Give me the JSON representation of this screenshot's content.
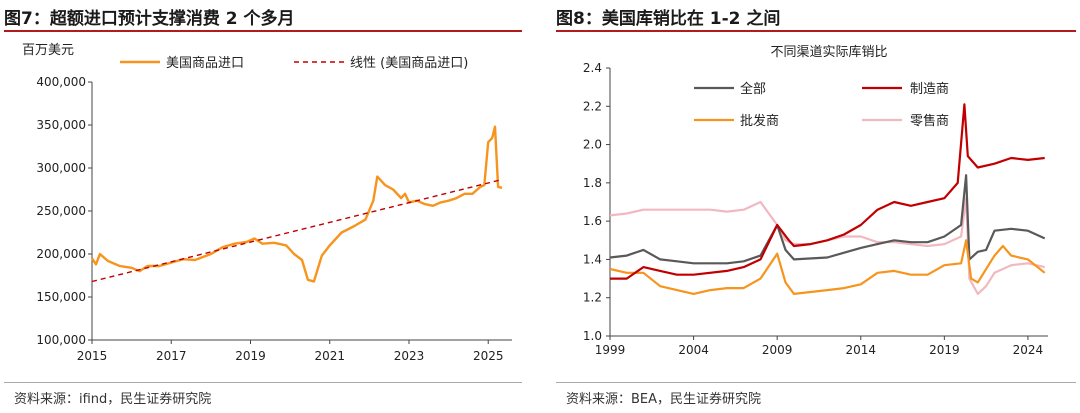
{
  "figures": [
    {
      "title": "图7：超额进口预计支撑消费 2 个多月",
      "source": "资料来源：ifind，民生证券研究院"
    },
    {
      "title": "图8：美国库销比在 1-2 之间",
      "source": "资料来源：BEA，民生证券研究院"
    }
  ],
  "colors": {
    "accent_rule": "#b11b1b",
    "orange": "#f7941d",
    "darkred": "#c00000",
    "gray": "#595959",
    "pink": "#f2b8c0"
  },
  "chart_data": [
    {
      "type": "line",
      "title": "",
      "unit_label": "百万美元",
      "xlabel": "",
      "ylabel": "",
      "xlim": [
        2015,
        2025.6
      ],
      "ylim": [
        100000,
        400000
      ],
      "x_ticks": [
        "2015",
        "2017",
        "2019",
        "2021",
        "2023",
        "2025"
      ],
      "y_ticks": [
        "100,000",
        "150,000",
        "200,000",
        "250,000",
        "300,000",
        "350,000",
        "400,000"
      ],
      "legend_position": "top",
      "series": [
        {
          "name": "美国商品进口",
          "style": "solid",
          "color": "#f7941d",
          "points": [
            [
              2015.0,
              195000
            ],
            [
              2015.1,
              188000
            ],
            [
              2015.2,
              200000
            ],
            [
              2015.4,
              192000
            ],
            [
              2015.7,
              186000
            ],
            [
              2016.0,
              184000
            ],
            [
              2016.2,
              180000
            ],
            [
              2016.4,
              186000
            ],
            [
              2016.7,
              186000
            ],
            [
              2017.0,
              190000
            ],
            [
              2017.3,
              194000
            ],
            [
              2017.6,
              193000
            ],
            [
              2018.0,
              200000
            ],
            [
              2018.3,
              208000
            ],
            [
              2018.6,
              212000
            ],
            [
              2018.9,
              214000
            ],
            [
              2019.1,
              218000
            ],
            [
              2019.3,
              212000
            ],
            [
              2019.6,
              213000
            ],
            [
              2019.9,
              210000
            ],
            [
              2020.1,
              200000
            ],
            [
              2020.3,
              193000
            ],
            [
              2020.45,
              170000
            ],
            [
              2020.6,
              168000
            ],
            [
              2020.8,
              198000
            ],
            [
              2021.0,
              210000
            ],
            [
              2021.3,
              225000
            ],
            [
              2021.6,
              232000
            ],
            [
              2021.9,
              240000
            ],
            [
              2022.1,
              262000
            ],
            [
              2022.2,
              290000
            ],
            [
              2022.4,
              280000
            ],
            [
              2022.6,
              275000
            ],
            [
              2022.8,
              265000
            ],
            [
              2022.9,
              270000
            ],
            [
              2023.0,
              260000
            ],
            [
              2023.2,
              262000
            ],
            [
              2023.4,
              258000
            ],
            [
              2023.6,
              256000
            ],
            [
              2023.8,
              260000
            ],
            [
              2024.0,
              262000
            ],
            [
              2024.2,
              265000
            ],
            [
              2024.4,
              270000
            ],
            [
              2024.6,
              270000
            ],
            [
              2024.8,
              278000
            ],
            [
              2024.9,
              280000
            ],
            [
              2025.0,
              330000
            ],
            [
              2025.1,
              335000
            ],
            [
              2025.17,
              348000
            ],
            [
              2025.25,
              278000
            ],
            [
              2025.35,
              277000
            ]
          ]
        },
        {
          "name": "线性 (美国商品进口)",
          "style": "dashed",
          "color": "#c00000",
          "points": [
            [
              2015.0,
              168000
            ],
            [
              2025.3,
              286000
            ]
          ]
        }
      ]
    },
    {
      "type": "line",
      "title": "不同渠道实际库销比",
      "xlabel": "",
      "ylabel": "",
      "xlim": [
        1999,
        2025.2
      ],
      "ylim": [
        1.0,
        2.4
      ],
      "x_ticks": [
        "1999",
        "2004",
        "2009",
        "2014",
        "2019",
        "2024"
      ],
      "y_ticks": [
        "1.0",
        "1.2",
        "1.4",
        "1.6",
        "1.8",
        "2.0",
        "2.2",
        "2.4"
      ],
      "legend_position": "top",
      "series": [
        {
          "name": "全部",
          "color": "#595959",
          "points": [
            [
              1999,
              1.41
            ],
            [
              2000,
              1.42
            ],
            [
              2001,
              1.45
            ],
            [
              2002,
              1.4
            ],
            [
              2003,
              1.39
            ],
            [
              2004,
              1.38
            ],
            [
              2005,
              1.38
            ],
            [
              2006,
              1.38
            ],
            [
              2007,
              1.39
            ],
            [
              2008,
              1.42
            ],
            [
              2009,
              1.58
            ],
            [
              2009.5,
              1.45
            ],
            [
              2010,
              1.4
            ],
            [
              2012,
              1.41
            ],
            [
              2014,
              1.46
            ],
            [
              2015,
              1.48
            ],
            [
              2016,
              1.5
            ],
            [
              2017,
              1.49
            ],
            [
              2018,
              1.49
            ],
            [
              2019,
              1.52
            ],
            [
              2020,
              1.58
            ],
            [
              2020.3,
              1.84
            ],
            [
              2020.5,
              1.4
            ],
            [
              2021,
              1.44
            ],
            [
              2021.5,
              1.45
            ],
            [
              2022,
              1.55
            ],
            [
              2023,
              1.56
            ],
            [
              2024,
              1.55
            ],
            [
              2025,
              1.51
            ]
          ]
        },
        {
          "name": "制造商",
          "color": "#c00000",
          "points": [
            [
              1999,
              1.3
            ],
            [
              2000,
              1.3
            ],
            [
              2001,
              1.36
            ],
            [
              2002,
              1.34
            ],
            [
              2003,
              1.32
            ],
            [
              2004,
              1.32
            ],
            [
              2006,
              1.34
            ],
            [
              2007,
              1.36
            ],
            [
              2008,
              1.4
            ],
            [
              2009,
              1.58
            ],
            [
              2009.7,
              1.5
            ],
            [
              2010,
              1.47
            ],
            [
              2011,
              1.48
            ],
            [
              2012,
              1.5
            ],
            [
              2013,
              1.53
            ],
            [
              2014,
              1.58
            ],
            [
              2015,
              1.66
            ],
            [
              2016,
              1.7
            ],
            [
              2017,
              1.68
            ],
            [
              2018,
              1.7
            ],
            [
              2019,
              1.72
            ],
            [
              2019.8,
              1.8
            ],
            [
              2020.2,
              2.21
            ],
            [
              2020.4,
              1.94
            ],
            [
              2021,
              1.88
            ],
            [
              2022,
              1.9
            ],
            [
              2023,
              1.93
            ],
            [
              2024,
              1.92
            ],
            [
              2025,
              1.93
            ]
          ]
        },
        {
          "name": "批发商",
          "color": "#f7941d",
          "points": [
            [
              1999,
              1.35
            ],
            [
              2000,
              1.33
            ],
            [
              2001,
              1.33
            ],
            [
              2002,
              1.26
            ],
            [
              2003,
              1.24
            ],
            [
              2004,
              1.22
            ],
            [
              2005,
              1.24
            ],
            [
              2006,
              1.25
            ],
            [
              2007,
              1.25
            ],
            [
              2008,
              1.3
            ],
            [
              2009,
              1.43
            ],
            [
              2009.5,
              1.28
            ],
            [
              2010,
              1.22
            ],
            [
              2011,
              1.23
            ],
            [
              2012,
              1.24
            ],
            [
              2013,
              1.25
            ],
            [
              2014,
              1.27
            ],
            [
              2015,
              1.33
            ],
            [
              2016,
              1.34
            ],
            [
              2017,
              1.32
            ],
            [
              2018,
              1.32
            ],
            [
              2019,
              1.37
            ],
            [
              2020,
              1.38
            ],
            [
              2020.3,
              1.5
            ],
            [
              2020.6,
              1.3
            ],
            [
              2021,
              1.28
            ],
            [
              2022,
              1.42
            ],
            [
              2022.5,
              1.47
            ],
            [
              2023,
              1.42
            ],
            [
              2024,
              1.4
            ],
            [
              2025,
              1.33
            ]
          ]
        },
        {
          "name": "零售商",
          "color": "#f2b8c0",
          "points": [
            [
              1999,
              1.63
            ],
            [
              2000,
              1.64
            ],
            [
              2001,
              1.66
            ],
            [
              2002,
              1.66
            ],
            [
              2003,
              1.66
            ],
            [
              2004,
              1.66
            ],
            [
              2005,
              1.66
            ],
            [
              2006,
              1.65
            ],
            [
              2007,
              1.66
            ],
            [
              2008,
              1.7
            ],
            [
              2009,
              1.58
            ],
            [
              2009.5,
              1.5
            ],
            [
              2010,
              1.48
            ],
            [
              2011,
              1.48
            ],
            [
              2012,
              1.5
            ],
            [
              2013,
              1.52
            ],
            [
              2014,
              1.52
            ],
            [
              2015,
              1.49
            ],
            [
              2016,
              1.49
            ],
            [
              2017,
              1.48
            ],
            [
              2018,
              1.47
            ],
            [
              2019,
              1.48
            ],
            [
              2020,
              1.52
            ],
            [
              2020.3,
              1.72
            ],
            [
              2020.5,
              1.3
            ],
            [
              2021,
              1.22
            ],
            [
              2021.5,
              1.26
            ],
            [
              2022,
              1.33
            ],
            [
              2023,
              1.37
            ],
            [
              2024,
              1.38
            ],
            [
              2025,
              1.36
            ]
          ]
        }
      ]
    }
  ]
}
